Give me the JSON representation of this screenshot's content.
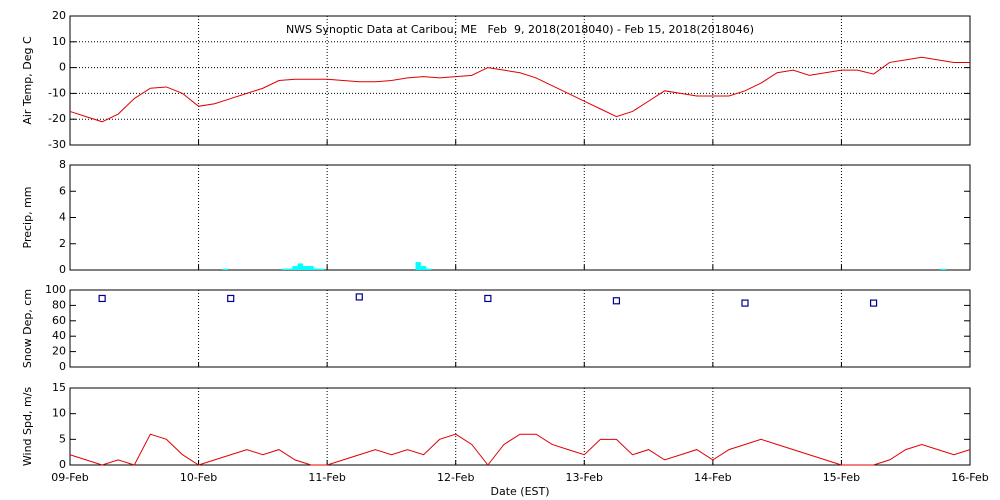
{
  "chart_data": [
    {
      "type": "line",
      "title": "NWS Synoptic Data at Caribou, ME   Feb  9, 2018(2018040) - Feb 15, 2018(2018046)",
      "y_label": "Air Temp, Deg C",
      "color": "#e00000",
      "grid": true,
      "xlim": [
        0,
        168
      ],
      "xticks": [
        0,
        24,
        48,
        72,
        96,
        120,
        144,
        168
      ],
      "ylim": [
        -30,
        20
      ],
      "yticks": [
        -30,
        -20,
        -10,
        0,
        10,
        20
      ],
      "x": [
        0,
        3,
        6,
        9,
        12,
        15,
        18,
        21,
        24,
        27,
        30,
        33,
        36,
        39,
        42,
        45,
        48,
        51,
        54,
        57,
        60,
        63,
        66,
        69,
        72,
        75,
        78,
        81,
        84,
        87,
        90,
        93,
        96,
        99,
        102,
        105,
        108,
        111,
        114,
        117,
        120,
        123,
        126,
        129,
        132,
        135,
        138,
        141,
        144,
        147,
        150,
        153,
        156,
        159,
        162,
        165,
        168
      ],
      "values": [
        -17,
        -19,
        -21,
        -18,
        -12,
        -8,
        -7.5,
        -10,
        -15,
        -14,
        -12,
        -10,
        -8,
        -5,
        -4.5,
        -4.5,
        -4.5,
        -5,
        -5.5,
        -5.5,
        -5,
        -4,
        -3.5,
        -4,
        -3.5,
        -3,
        0,
        -1,
        -2,
        -4,
        -7,
        -10,
        -13,
        -16,
        -19,
        -17,
        -13,
        -9,
        -10,
        -11,
        -11,
        -11,
        -9,
        -6,
        -2,
        -1,
        -3,
        -2,
        -1,
        -1,
        -2.5,
        2,
        3,
        4,
        3,
        2,
        2
      ]
    },
    {
      "type": "bar",
      "y_label": "Precip, mm",
      "color": "#00ffff",
      "grid": false,
      "xlim": [
        0,
        168
      ],
      "xticks": [
        0,
        24,
        48,
        72,
        96,
        120,
        144,
        168
      ],
      "ylim": [
        0,
        8
      ],
      "yticks": [
        0,
        2,
        4,
        6,
        8
      ],
      "x": [
        29,
        40,
        41,
        42,
        43,
        44,
        45,
        46,
        47,
        65,
        66,
        67,
        163
      ],
      "values": [
        0.1,
        0.1,
        0.1,
        0.3,
        0.5,
        0.3,
        0.3,
        0.1,
        0.1,
        0.6,
        0.3,
        0.1,
        0.1
      ]
    },
    {
      "type": "scatter",
      "y_label": "Snow Dep, cm",
      "color": "#00008b",
      "grid": false,
      "xlim": [
        0,
        168
      ],
      "xticks": [
        0,
        24,
        48,
        72,
        96,
        120,
        144,
        168
      ],
      "ylim": [
        0,
        100
      ],
      "yticks": [
        0,
        20,
        40,
        60,
        80,
        100
      ],
      "x": [
        6,
        30,
        54,
        78,
        102,
        126,
        150
      ],
      "values": [
        89,
        89,
        91,
        89,
        86,
        83,
        83
      ]
    },
    {
      "type": "line",
      "y_label": "Wind Spd, m/s",
      "x_label": "Date (EST)",
      "color": "#e00000",
      "grid": false,
      "xlim": [
        0,
        168
      ],
      "xticks": [
        {
          "value": 0,
          "label": "09-Feb"
        },
        {
          "value": 24,
          "label": "10-Feb"
        },
        {
          "value": 48,
          "label": "11-Feb"
        },
        {
          "value": 72,
          "label": "12-Feb"
        },
        {
          "value": 96,
          "label": "13-Feb"
        },
        {
          "value": 120,
          "label": "14-Feb"
        },
        {
          "value": 144,
          "label": "15-Feb"
        },
        {
          "value": 168,
          "label": "16-Feb"
        }
      ],
      "ylim": [
        0,
        15
      ],
      "yticks": [
        0,
        5,
        10,
        15
      ],
      "x": [
        0,
        3,
        6,
        9,
        12,
        15,
        18,
        21,
        24,
        27,
        30,
        33,
        36,
        39,
        42,
        45,
        48,
        51,
        54,
        57,
        60,
        63,
        66,
        69,
        72,
        75,
        78,
        81,
        84,
        87,
        90,
        93,
        96,
        99,
        102,
        105,
        108,
        111,
        114,
        117,
        120,
        123,
        126,
        129,
        132,
        135,
        138,
        141,
        144,
        147,
        150,
        153,
        156,
        159,
        162,
        165,
        168
      ],
      "values": [
        2,
        1,
        0,
        1,
        0,
        6,
        5,
        2,
        0,
        1,
        2,
        3,
        2,
        3,
        1,
        0,
        0,
        1,
        2,
        3,
        2,
        3,
        2,
        5,
        6,
        4,
        0,
        4,
        6,
        6,
        4,
        3,
        2,
        5,
        5,
        2,
        3,
        1,
        2,
        3,
        1,
        3,
        4,
        5,
        4,
        3,
        2,
        1,
        0,
        0,
        0,
        1,
        3,
        4,
        3,
        2,
        3
      ]
    }
  ]
}
